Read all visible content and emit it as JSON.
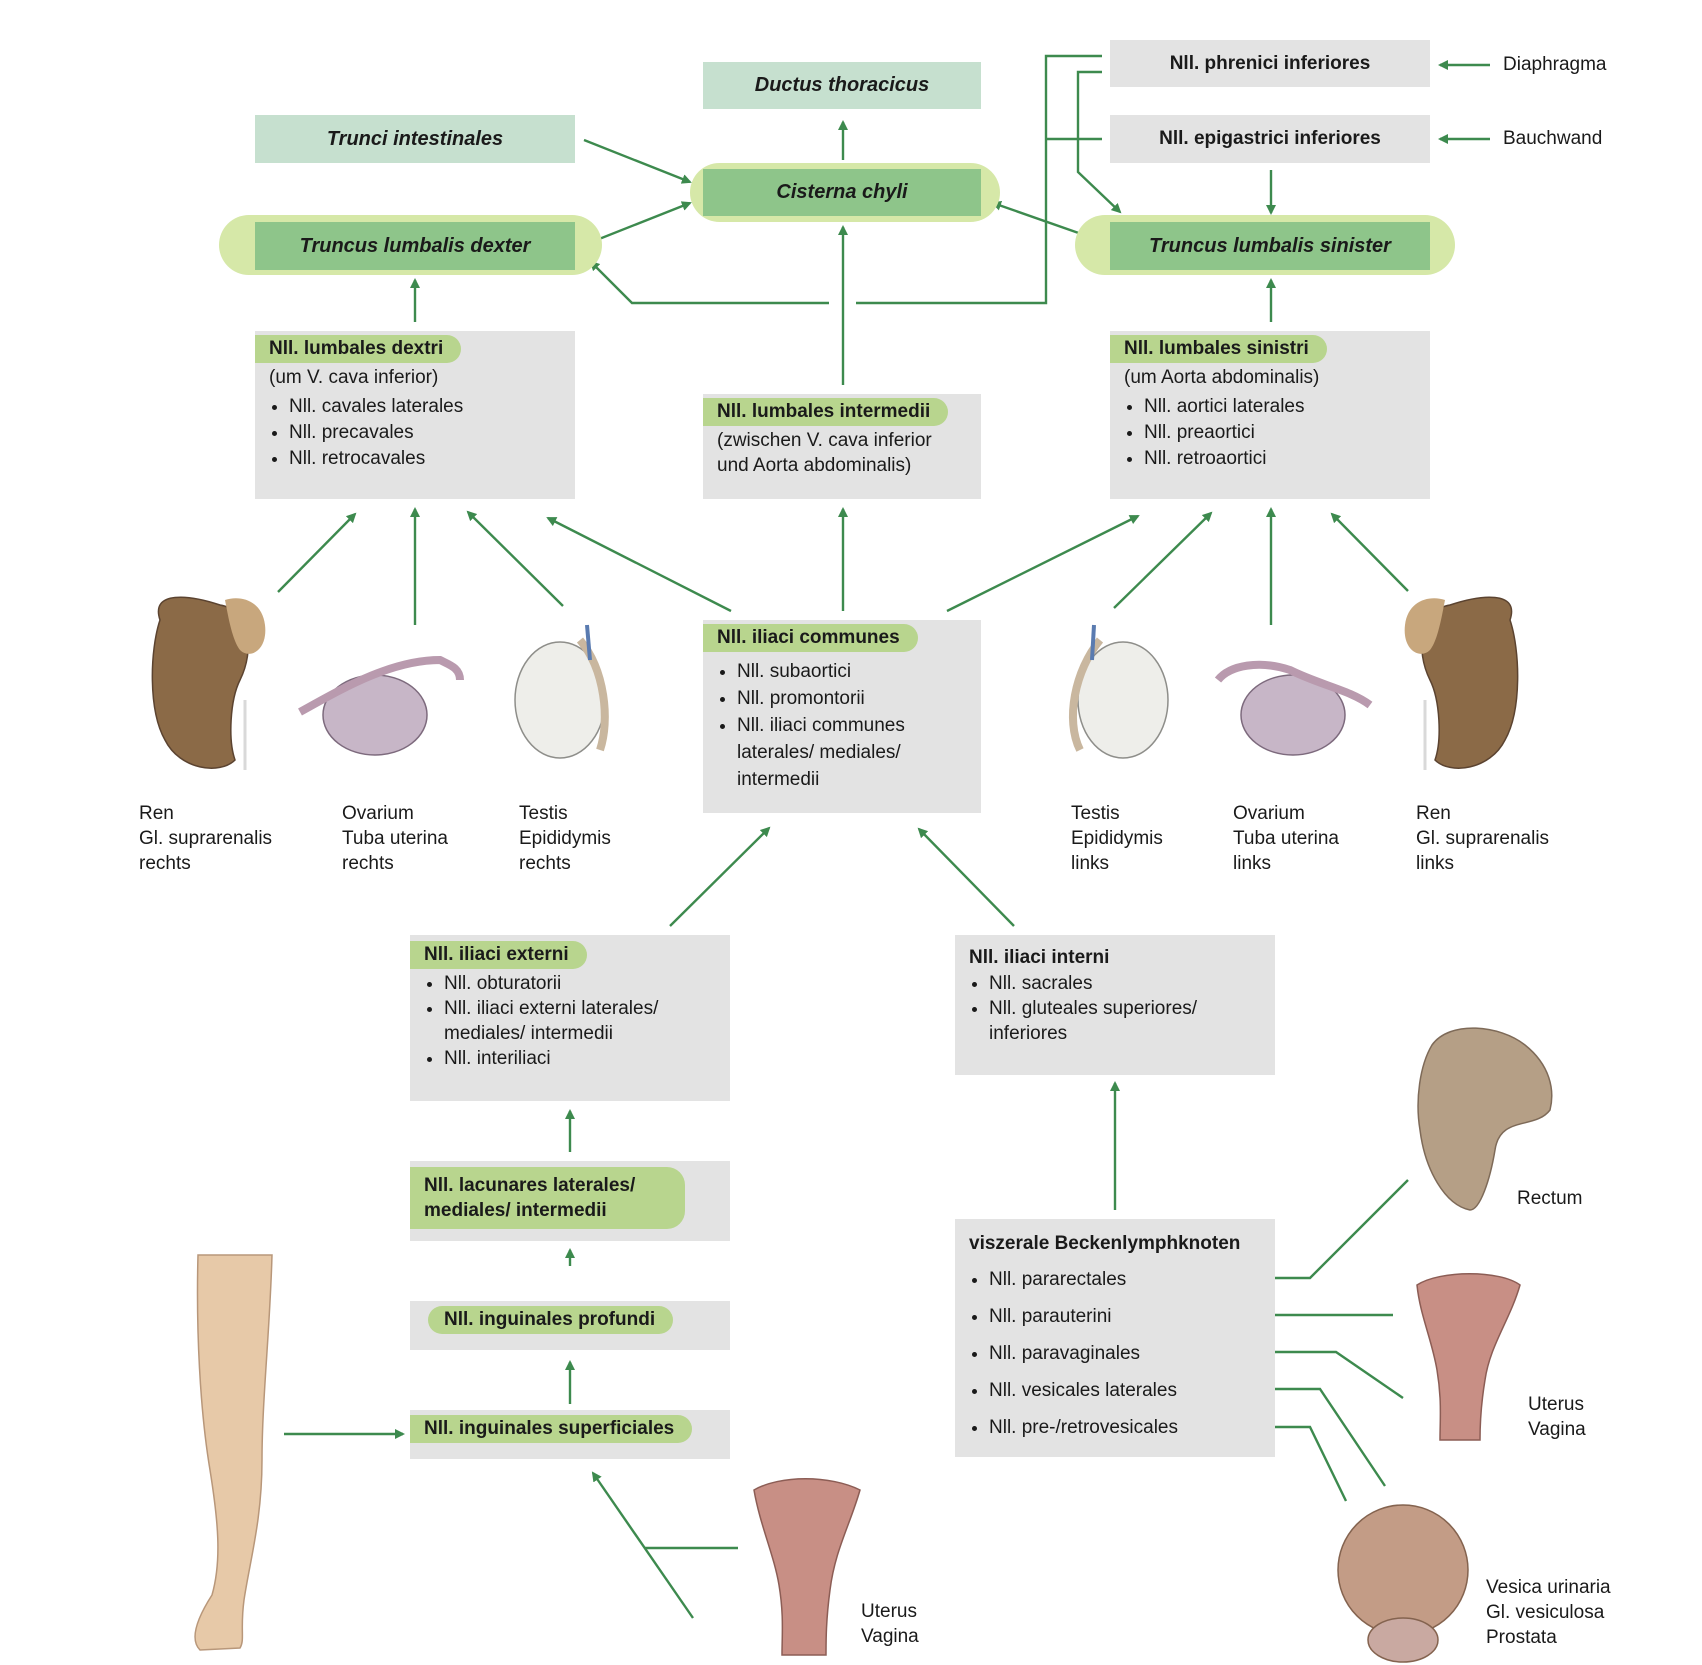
{
  "top": {
    "ductus": "Ductus thoracicus",
    "trunci_intestinales": "Trunci intestinales",
    "cisterna": "Cisterna chyli",
    "truncus_dexter": "Truncus lumbalis dexter",
    "truncus_sinister": "Truncus lumbalis sinister",
    "phrenici": "Nll. phrenici inferiores",
    "epigastrici": "Nll. epigastrici inferiores",
    "diaphragma": "Diaphragma",
    "bauchwand": "Bauchwand"
  },
  "lumbales_dextri": {
    "title": "Nll. lumbales dextri",
    "subtitle": "(um V. cava inferior)",
    "items": [
      "Nll. cavales laterales",
      "Nll. precavales",
      "Nll. retrocavales"
    ]
  },
  "lumbales_intermedii": {
    "title": "Nll. lumbales intermedii",
    "sub1": "(zwischen V. cava inferior",
    "sub2": "und Aorta abdominalis)"
  },
  "lumbales_sinistri": {
    "title": "Nll. lumbales sinistri",
    "subtitle": "(um Aorta abdominalis)",
    "items": [
      "Nll. aortici laterales",
      "Nll. preaortici",
      "Nll. retroaortici"
    ]
  },
  "iliaci_communes": {
    "title": "Nll. iliaci communes",
    "items": [
      "Nll. subaortici",
      "Nll. promontorii"
    ],
    "item3_l1": "Nll. iliaci communes",
    "item3_l2": "laterales/ mediales/",
    "item3_l3": "intermedii"
  },
  "organs_right": {
    "ren": [
      "Ren",
      "Gl. suprarenalis",
      "rechts"
    ],
    "ovarium": [
      "Ovarium",
      "Tuba uterina",
      "rechts"
    ],
    "testis": [
      "Testis",
      "Epididymis",
      "rechts"
    ]
  },
  "organs_left": {
    "testis": [
      "Testis",
      "Epididymis",
      "links"
    ],
    "ovarium": [
      "Ovarium",
      "Tuba uterina",
      "links"
    ],
    "ren": [
      "Ren",
      "Gl. suprarenalis",
      "links"
    ]
  },
  "iliaci_externi": {
    "title": "Nll. iliaci externi",
    "item1": "Nll. obturatorii",
    "item2_l1": "Nll. iliaci externi laterales/",
    "item2_l2": "mediales/ intermedii",
    "item3": "Nll. interiliaci"
  },
  "iliaci_interni": {
    "title": "Nll. iliaci interni",
    "item1": "Nll. sacrales",
    "item2_l1": "Nll. gluteales superiores/",
    "item2_l2": "inferiores"
  },
  "lacunares": {
    "l1": "Nll. lacunares laterales/",
    "l2": "mediales/ intermedii"
  },
  "inguinales_profundi": "Nll. inguinales profundi",
  "inguinales_superficiales": "Nll. inguinales superficiales",
  "viszerale": {
    "title": "viszerale Beckenlymphknoten",
    "items": [
      "Nll. pararectales",
      "Nll. parauterini",
      "Nll. paravaginales",
      "Nll. vesicales laterales",
      "Nll. pre-/retrovesicales"
    ]
  },
  "pelvic_labels": {
    "rectum": "Rectum",
    "uterus_right": [
      "Uterus",
      "Vagina"
    ],
    "vesica": [
      "Vesica urinaria",
      "Gl. vesiculosa",
      "Prostata"
    ],
    "uterus_bottom": [
      "Uterus",
      "Vagina"
    ]
  },
  "colors": {
    "arrow": "#3d8a4e",
    "box_grey": "#e3e3e3",
    "box_lightgreen": "#c6e0cf",
    "box_darkgreen": "#8ec58a",
    "pill": "#d6e8a8",
    "tag": "#b8d58e"
  }
}
